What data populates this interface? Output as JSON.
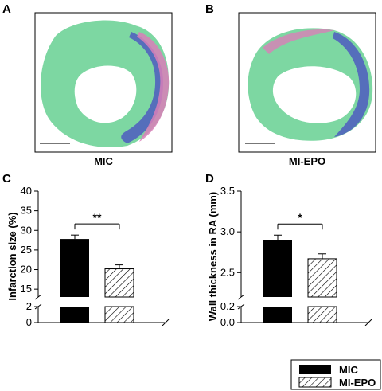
{
  "panels": {
    "a": "A",
    "b": "B",
    "c": "C",
    "d": "D"
  },
  "histology": {
    "left_caption": "MIC",
    "right_caption": "MI-EPO",
    "colors": {
      "myocardium": "#7dd7a2",
      "fibrosis": "#4d5cc0",
      "collagen": "#d97fb8",
      "scale_bar": "#777777"
    }
  },
  "legend": {
    "items": [
      {
        "label": "MIC",
        "style": "solid",
        "color": "#000000"
      },
      {
        "label": "MI-EPO",
        "style": "hatched",
        "color": "#000000"
      }
    ]
  },
  "chart_data": [
    {
      "panel": "C",
      "type": "bar",
      "categories": [
        "MIC",
        "MI-EPO"
      ],
      "values": [
        27.8,
        20.2
      ],
      "errors": [
        1.0,
        1.0
      ],
      "fills": [
        "solid",
        "hatched"
      ],
      "ylabel": "Infarction size (%)",
      "ylim_upper": [
        13,
        40
      ],
      "ylim_lower": [
        0,
        2
      ],
      "axis_break": true,
      "yticks_upper": [
        "15",
        "20",
        "25",
        "30",
        "35",
        "40"
      ],
      "yticks_lower": [
        "0",
        "2"
      ],
      "significance": "**",
      "grid": false
    },
    {
      "panel": "D",
      "type": "bar",
      "categories": [
        "MIC",
        "MI-EPO"
      ],
      "values": [
        2.9,
        2.67
      ],
      "errors": [
        0.06,
        0.06
      ],
      "fills": [
        "solid",
        "hatched"
      ],
      "ylabel": "Wall thickness in RA (mm)",
      "ylim_upper": [
        2.2,
        3.5
      ],
      "ylim_lower": [
        0.0,
        0.2
      ],
      "axis_break": true,
      "yticks_upper": [
        "2.5",
        "3.0",
        "3.5"
      ],
      "yticks_lower": [
        "0.0",
        "0.2"
      ],
      "significance": "*",
      "grid": false
    }
  ]
}
